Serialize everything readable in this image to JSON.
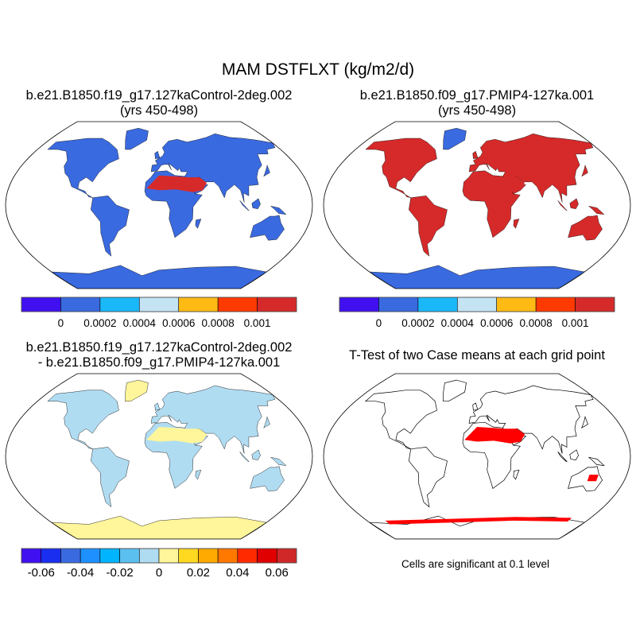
{
  "title": "MAM DSTFLXT (kg/m2/d)",
  "panels": [
    {
      "id": "case1",
      "title_lines": [
        "b.e21.B1850.f19_g17.127kaControl-2deg.002",
        "(yrs 450-498)"
      ],
      "land_color": "#3A6AE0",
      "hotspot_color": "#D62A2A",
      "polar_color": "#3A6AE0"
    },
    {
      "id": "case2",
      "title_lines": [
        "b.e21.B1850.f09_g17.PMIP4-127ka.001",
        "(yrs 450-498)"
      ],
      "land_color": "#D62A2A",
      "hotspot_color": "#D62A2A",
      "polar_color": "#3A6AE0"
    },
    {
      "id": "diff",
      "title_lines": [
        "b.e21.B1850.f19_g17.127kaControl-2deg.002",
        "- b.e21.B1850.f09_g17.PMIP4-127ka.001"
      ],
      "land_color": "#B0DCF2",
      "hotspot_color": "#FFF59A",
      "polar_color": "#FFF59A"
    },
    {
      "id": "ttest",
      "title_lines": [
        "T-Test of two Case means at each grid point"
      ],
      "land_color": "#FFFFFF",
      "hotspot_color": "#FF0000",
      "polar_color": "#FFFFFF"
    }
  ],
  "colorbars": [
    {
      "id": "case1-colorbar",
      "colors": [
        "#4010F0",
        "#3A6AE0",
        "#1AB8F8",
        "#C4E4F4",
        "#FFBA14",
        "#FF3A00",
        "#D62A2A"
      ],
      "labels": [
        "0",
        "0.0002",
        "0.0004",
        "0.0006",
        "0.0008",
        "0.001"
      ]
    },
    {
      "id": "case2-colorbar",
      "colors": [
        "#4010F0",
        "#3A6AE0",
        "#1AB8F8",
        "#C4E4F4",
        "#FFBA14",
        "#FF3A00",
        "#D62A2A"
      ],
      "labels": [
        "0",
        "0.0002",
        "0.0004",
        "0.0006",
        "0.0008",
        "0.001"
      ]
    },
    {
      "id": "diff-colorbar",
      "colors": [
        "#4010F0",
        "#1A2EF0",
        "#3A6AE0",
        "#1E90FF",
        "#00B4FF",
        "#5BC0F0",
        "#B0DCF2",
        "#FFF59A",
        "#FFD820",
        "#FFAA00",
        "#FF7800",
        "#FF2A00",
        "#E00000",
        "#D02828"
      ],
      "labels": [
        "-0.06",
        "-0.04",
        "-0.02",
        "0",
        "0.02",
        "0.04",
        "0.06"
      ]
    }
  ],
  "significance_note": "Cells are significant at 0.1 level"
}
